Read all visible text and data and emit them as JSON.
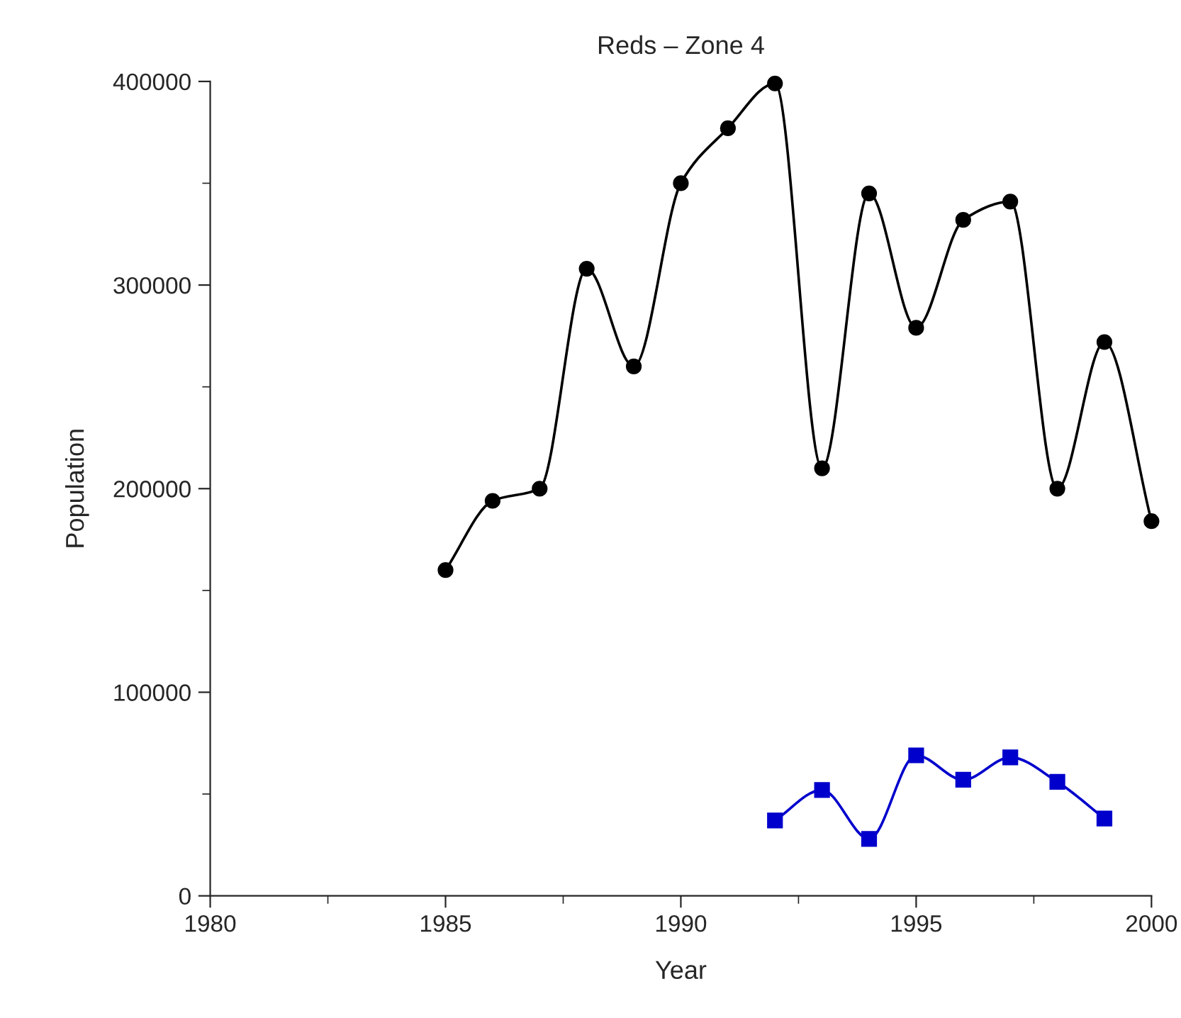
{
  "chart_data": {
    "type": "line",
    "title": "Reds – Zone 4",
    "xlabel": "Year",
    "ylabel": "Population",
    "xlim": [
      1980,
      2000
    ],
    "xticks": [
      1980,
      1985,
      1990,
      1995,
      2000
    ],
    "ylim": [
      0,
      400000
    ],
    "yticks": [
      0,
      100000,
      200000,
      300000,
      400000
    ],
    "grid": false,
    "legend": false,
    "series": [
      {
        "color": "#000000",
        "marker": "circle",
        "x": [
          1985,
          1986,
          1987,
          1988,
          1989,
          1990,
          1991,
          1992,
          1993,
          1994,
          1995,
          1996,
          1997,
          1998,
          1999,
          2000
        ],
        "values": [
          160000,
          194000,
          200000,
          308000,
          260000,
          350000,
          377000,
          399000,
          210000,
          345000,
          279000,
          332000,
          341000,
          200000,
          272000,
          184000
        ]
      },
      {
        "color": "#0000cc",
        "marker": "square",
        "x": [
          1992,
          1993,
          1994,
          1995,
          1996,
          1997,
          1998,
          1999
        ],
        "values": [
          37000,
          52000,
          28000,
          69000,
          57000,
          68000,
          56000,
          38000
        ]
      }
    ]
  }
}
